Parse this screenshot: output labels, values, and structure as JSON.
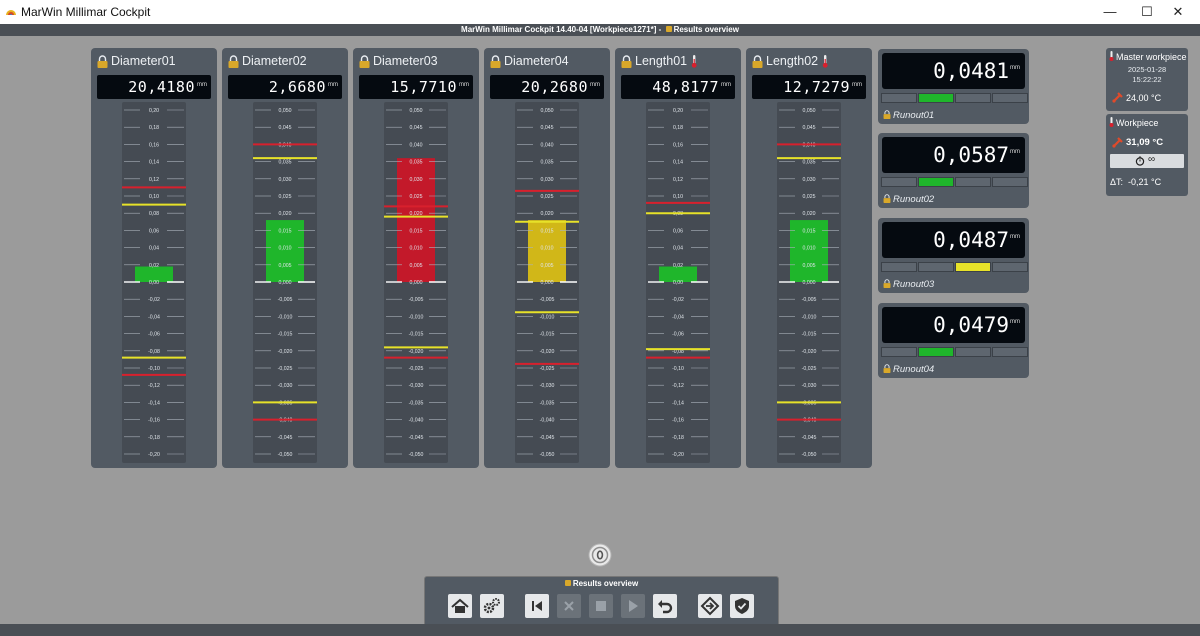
{
  "window": {
    "title": "MarWin Millimar Cockpit",
    "subtitle": "MarWin Millimar Cockpit 14.40-04 [Workpiece1271*] -",
    "subtitle_view": "Results overview",
    "controls": {
      "minimize": "—",
      "maximize": "☐",
      "close": "✕"
    }
  },
  "colors": {
    "panel": "#525a63",
    "scale": "#454b53",
    "green": "#1fb62b",
    "red": "#c3192a",
    "yellow": "#d1b718",
    "tol_yellow": "#e7e229",
    "tol_red": "#d8202d",
    "display": "#050a10"
  },
  "unit": "mm",
  "features": [
    {
      "name": "Diameter01",
      "value": "20,4180",
      "thermo": false,
      "ticks": [
        "0,20",
        "0,18",
        "0,16",
        "0,14",
        "0,12",
        "0,10",
        "0,08",
        "0,06",
        "0,04",
        "0,02",
        "0,00",
        "-0,02",
        "-0,04",
        "-0,06",
        "-0,08",
        "-0,10",
        "-0,12",
        "-0,14",
        "-0,16",
        "-0,18",
        "-0,20"
      ],
      "scale_max": 0.2,
      "bar_value": 0.018,
      "bar_color": "green",
      "warn_upper": 0.09,
      "tol_upper": 0.11,
      "warn_lower": -0.088,
      "tol_lower": -0.108
    },
    {
      "name": "Diameter02",
      "value": "2,6680",
      "thermo": false,
      "ticks": [
        "0,050",
        "0,045",
        "0,040",
        "0,035",
        "0,030",
        "0,025",
        "0,020",
        "0,015",
        "0,010",
        "0,005",
        "0,000",
        "-0,005",
        "-0,010",
        "-0,015",
        "-0,020",
        "-0,025",
        "-0,030",
        "-0,035",
        "-0,040",
        "-0,045",
        "-0,050"
      ],
      "scale_max": 0.05,
      "bar_value": 0.018,
      "bar_color": "green",
      "warn_upper": 0.036,
      "tol_upper": 0.04,
      "warn_lower": -0.035,
      "tol_lower": -0.04
    },
    {
      "name": "Diameter03",
      "value": "15,7710",
      "thermo": false,
      "ticks": [
        "0,050",
        "0,045",
        "0,040",
        "0,035",
        "0,030",
        "0,025",
        "0,020",
        "0,015",
        "0,010",
        "0,005",
        "0,000",
        "-0,005",
        "-0,010",
        "-0,015",
        "-0,020",
        "-0,025",
        "-0,030",
        "-0,035",
        "-0,040",
        "-0,045",
        "-0,050"
      ],
      "scale_max": 0.05,
      "bar_value": 0.036,
      "bar_color": "red",
      "warn_upper": 0.019,
      "tol_upper": 0.022,
      "warn_lower": -0.019,
      "tol_lower": -0.022
    },
    {
      "name": "Diameter04",
      "value": "20,2680",
      "thermo": false,
      "ticks": [
        "0,050",
        "0,045",
        "0,040",
        "0,035",
        "0,030",
        "0,025",
        "0,020",
        "0,015",
        "0,010",
        "0,005",
        "0,000",
        "-0,005",
        "-0,010",
        "-0,015",
        "-0,020",
        "-0,025",
        "-0,030",
        "-0,035",
        "-0,040",
        "-0,045",
        "-0,050"
      ],
      "scale_max": 0.05,
      "bar_value": 0.018,
      "bar_color": "yellow",
      "warn_upper": 0.0175,
      "tol_upper": 0.0265,
      "warn_lower": -0.0088,
      "tol_lower": -0.0238
    },
    {
      "name": "Length01",
      "value": "48,8177",
      "thermo": true,
      "ticks": [
        "0,20",
        "0,18",
        "0,16",
        "0,14",
        "0,12",
        "0,10",
        "0,08",
        "0,06",
        "0,04",
        "0,02",
        "0,00",
        "-0,02",
        "-0,04",
        "-0,06",
        "-0,08",
        "-0,10",
        "-0,12",
        "-0,14",
        "-0,16",
        "-0,18",
        "-0,20"
      ],
      "scale_max": 0.2,
      "bar_value": 0.018,
      "bar_color": "green",
      "warn_upper": 0.08,
      "tol_upper": 0.092,
      "warn_lower": -0.078,
      "tol_lower": -0.088
    },
    {
      "name": "Length02",
      "value": "12,7279",
      "thermo": true,
      "ticks": [
        "0,050",
        "0,045",
        "0,040",
        "0,035",
        "0,030",
        "0,025",
        "0,020",
        "0,015",
        "0,010",
        "0,005",
        "0,000",
        "-0,005",
        "-0,010",
        "-0,015",
        "-0,020",
        "-0,025",
        "-0,030",
        "-0,035",
        "-0,040",
        "-0,045",
        "-0,050"
      ],
      "scale_max": 0.05,
      "bar_value": 0.018,
      "bar_color": "green",
      "warn_upper": 0.036,
      "tol_upper": 0.04,
      "warn_lower": -0.035,
      "tol_lower": -0.04
    }
  ],
  "runouts": [
    {
      "name": "Runout01",
      "value": "0,0481",
      "active_segment": 1,
      "segment_color": "green"
    },
    {
      "name": "Runout02",
      "value": "0,0587",
      "active_segment": 1,
      "segment_color": "green"
    },
    {
      "name": "Runout03",
      "value": "0,0487",
      "active_segment": 2,
      "segment_color": "yellow"
    },
    {
      "name": "Runout04",
      "value": "0,0479",
      "active_segment": 1,
      "segment_color": "green"
    }
  ],
  "master": {
    "title": "Master workpiece",
    "date": "2025-01-28",
    "time": "15:22:22",
    "temp": "24,00 °C"
  },
  "workpiece": {
    "title": "Workpiece",
    "temp": "31,09 °C",
    "timer": "∞",
    "delta_label": "ΔT:",
    "delta": "-0,21 °C"
  },
  "toolbar": {
    "title": "Results overview",
    "buttons": [
      {
        "name": "home-button",
        "icon": "home-icon",
        "enabled": true
      },
      {
        "name": "settings-button",
        "icon": "gears-icon",
        "enabled": true
      },
      {
        "name": "first-button",
        "icon": "skip-back-icon",
        "enabled": true
      },
      {
        "name": "cancel-button",
        "icon": "x-icon",
        "enabled": false
      },
      {
        "name": "stop-button",
        "icon": "stop-icon",
        "enabled": false
      },
      {
        "name": "play-button",
        "icon": "play-icon",
        "enabled": false
      },
      {
        "name": "undo-button",
        "icon": "undo-icon",
        "enabled": true
      },
      {
        "name": "navigate-button",
        "icon": "diamond-arrow-icon",
        "enabled": true
      },
      {
        "name": "shield-button",
        "icon": "shield-check-icon",
        "enabled": true
      }
    ]
  }
}
